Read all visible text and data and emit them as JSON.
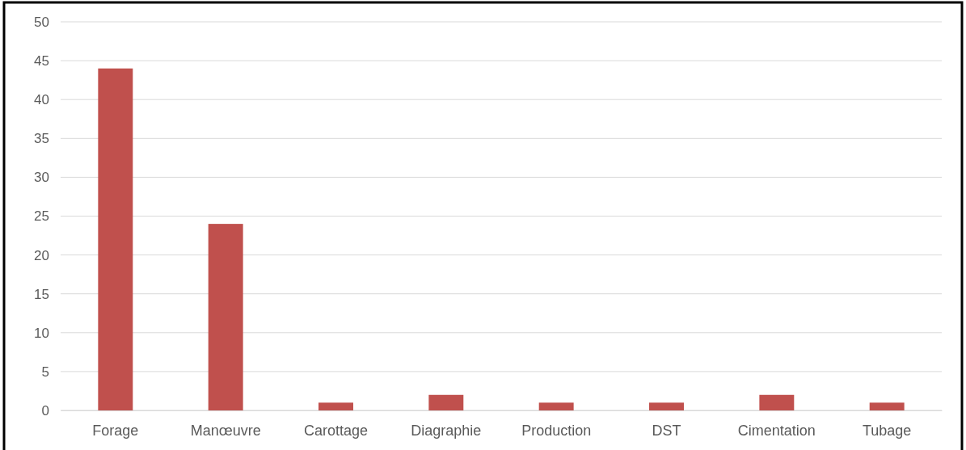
{
  "chart_data": {
    "type": "bar",
    "categories": [
      "Forage",
      "Manœuvre",
      "Carottage",
      "Diagraphie",
      "Production",
      "DST",
      "Cimentation",
      "Tubage"
    ],
    "values": [
      44,
      24,
      1,
      2,
      1,
      1,
      2,
      1
    ],
    "color": "#c0504d",
    "ylim": [
      0,
      50
    ],
    "yticks": [
      0,
      5,
      10,
      15,
      20,
      25,
      30,
      35,
      40,
      45,
      50
    ],
    "grid": "y"
  }
}
